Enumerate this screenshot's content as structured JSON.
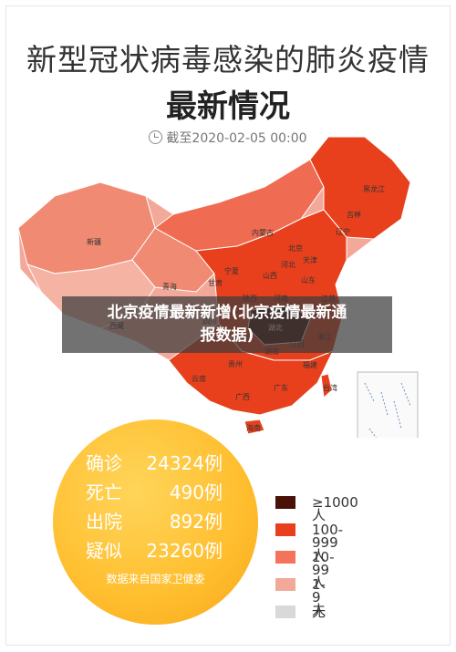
{
  "header": {
    "title": "新型冠状病毒感染的肺炎疫情",
    "subtitle": "最新情况",
    "timestamp": "截至2020-02-05 00:00"
  },
  "overlay": {
    "line1": "北京疫情最新新增(北京疫情最新通",
    "line2": "报数据)"
  },
  "map_labels": [
    "新疆",
    "西藏",
    "青海",
    "甘肃",
    "内蒙古",
    "宁夏",
    "陕西",
    "山西",
    "北京",
    "河北",
    "天津",
    "山东",
    "河南",
    "湖北",
    "四川",
    "重庆",
    "贵州",
    "云南",
    "广西",
    "广东",
    "湖南",
    "江西",
    "安徽",
    "江苏",
    "浙江",
    "福建",
    "台湾",
    "海南",
    "辽宁",
    "吉林",
    "黑龙江",
    "上海"
  ],
  "stats": {
    "confirmed": {
      "label": "确诊",
      "value": "24324例"
    },
    "deaths": {
      "label": "死亡",
      "value": "490例"
    },
    "recovered": {
      "label": "出院",
      "value": "892例"
    },
    "suspected": {
      "label": "疑似",
      "value": "23260例"
    },
    "source": "数据来自国家卫健委"
  },
  "legend": [
    {
      "label": "≥1000人",
      "color": "#4a1108"
    },
    {
      "label": "100-999人",
      "color": "#e8401d"
    },
    {
      "label": "10-99人",
      "color": "#f4735a"
    },
    {
      "label": "1-9人",
      "color": "#f3a99a"
    },
    {
      "label": "无",
      "color": "#d9d9d9"
    }
  ]
}
